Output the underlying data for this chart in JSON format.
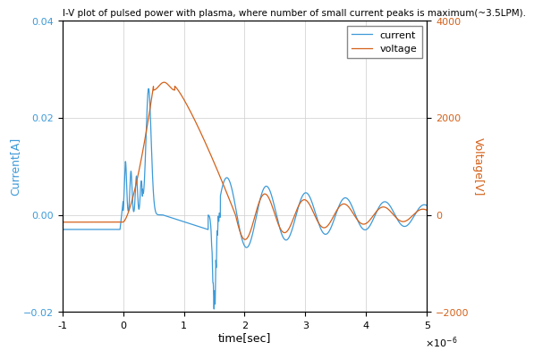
{
  "title": "I-V plot of pulsed power with plasma, where number of small current peaks is maximum(~3.5LPM).",
  "xlabel": "time[sec]",
  "ylabel_left": "Current[A]",
  "ylabel_right": "Voltage[V]",
  "xlim": [
    -1e-06,
    5e-06
  ],
  "ylim_current": [
    -0.02,
    0.04
  ],
  "ylim_voltage": [
    -2000,
    4000
  ],
  "current_color": "#3d9ad8",
  "voltage_color": "#d4611a",
  "background_color": "#ffffff",
  "legend_labels": [
    "current",
    "voltage"
  ],
  "yticks_current": [
    -0.02,
    0,
    0.02,
    0.04
  ],
  "yticks_voltage": [
    -2000,
    0,
    2000,
    4000
  ],
  "xticks": [
    -1e-06,
    0,
    1e-06,
    2e-06,
    3e-06,
    4e-06,
    5e-06
  ]
}
